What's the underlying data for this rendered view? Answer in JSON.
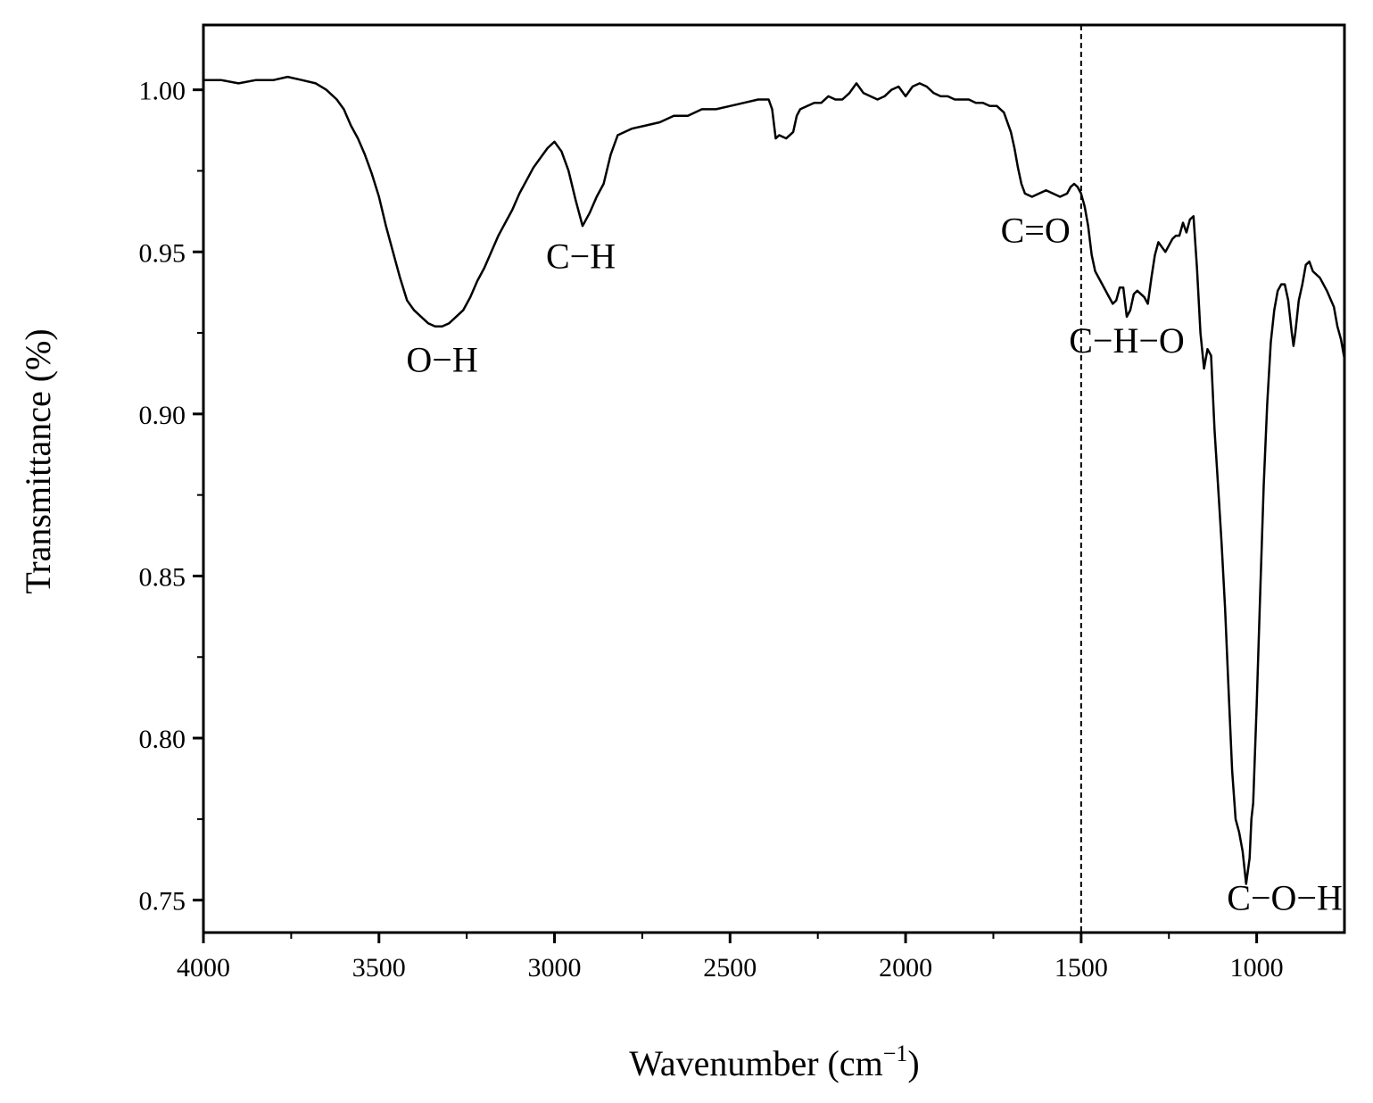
{
  "chart_data": {
    "type": "line",
    "xlabel": "Wavenumber (cm",
    "xlabel_sup": "−1",
    "xlabel_end": ")",
    "ylabel": "Transmittance (%)",
    "xlim": [
      4000,
      750
    ],
    "x_reversed": true,
    "ylim": [
      0.74,
      1.02
    ],
    "xticks": [
      4000,
      3500,
      3000,
      2500,
      2000,
      1500,
      1000
    ],
    "xtick_labels": [
      "4000",
      "3500",
      "3000",
      "2500",
      "2000",
      "1500",
      "1000"
    ],
    "yticks": [
      0.75,
      0.8,
      0.85,
      0.9,
      0.95,
      1.0
    ],
    "ytick_labels": [
      "0.75",
      "0.80",
      "0.85",
      "0.90",
      "0.95",
      "1.00"
    ],
    "grid": false,
    "reference_line": {
      "x": 1500,
      "style": "dashed"
    },
    "series": [
      {
        "color": "#000000",
        "points": [
          [
            4000,
            1.003
          ],
          [
            3950,
            1.003
          ],
          [
            3900,
            1.002
          ],
          [
            3850,
            1.003
          ],
          [
            3800,
            1.003
          ],
          [
            3760,
            1.004
          ],
          [
            3720,
            1.003
          ],
          [
            3680,
            1.002
          ],
          [
            3650,
            1.0
          ],
          [
            3620,
            0.997
          ],
          [
            3600,
            0.994
          ],
          [
            3580,
            0.989
          ],
          [
            3560,
            0.985
          ],
          [
            3540,
            0.98
          ],
          [
            3520,
            0.974
          ],
          [
            3500,
            0.967
          ],
          [
            3480,
            0.958
          ],
          [
            3460,
            0.95
          ],
          [
            3440,
            0.942
          ],
          [
            3420,
            0.935
          ],
          [
            3400,
            0.932
          ],
          [
            3380,
            0.93
          ],
          [
            3360,
            0.928
          ],
          [
            3340,
            0.927
          ],
          [
            3320,
            0.927
          ],
          [
            3300,
            0.928
          ],
          [
            3280,
            0.93
          ],
          [
            3260,
            0.932
          ],
          [
            3240,
            0.936
          ],
          [
            3220,
            0.941
          ],
          [
            3200,
            0.945
          ],
          [
            3180,
            0.95
          ],
          [
            3160,
            0.955
          ],
          [
            3140,
            0.959
          ],
          [
            3120,
            0.963
          ],
          [
            3100,
            0.968
          ],
          [
            3080,
            0.972
          ],
          [
            3060,
            0.976
          ],
          [
            3040,
            0.979
          ],
          [
            3020,
            0.982
          ],
          [
            3000,
            0.984
          ],
          [
            2980,
            0.981
          ],
          [
            2960,
            0.975
          ],
          [
            2940,
            0.966
          ],
          [
            2920,
            0.958
          ],
          [
            2900,
            0.962
          ],
          [
            2880,
            0.967
          ],
          [
            2860,
            0.971
          ],
          [
            2840,
            0.98
          ],
          [
            2820,
            0.986
          ],
          [
            2800,
            0.987
          ],
          [
            2780,
            0.988
          ],
          [
            2740,
            0.989
          ],
          [
            2700,
            0.99
          ],
          [
            2660,
            0.992
          ],
          [
            2620,
            0.992
          ],
          [
            2580,
            0.994
          ],
          [
            2540,
            0.994
          ],
          [
            2500,
            0.995
          ],
          [
            2460,
            0.996
          ],
          [
            2420,
            0.997
          ],
          [
            2390,
            0.997
          ],
          [
            2380,
            0.994
          ],
          [
            2370,
            0.985
          ],
          [
            2360,
            0.986
          ],
          [
            2340,
            0.985
          ],
          [
            2320,
            0.987
          ],
          [
            2310,
            0.992
          ],
          [
            2300,
            0.994
          ],
          [
            2280,
            0.995
          ],
          [
            2260,
            0.996
          ],
          [
            2240,
            0.996
          ],
          [
            2220,
            0.998
          ],
          [
            2200,
            0.997
          ],
          [
            2180,
            0.997
          ],
          [
            2160,
            0.999
          ],
          [
            2140,
            1.002
          ],
          [
            2120,
            0.999
          ],
          [
            2100,
            0.998
          ],
          [
            2080,
            0.997
          ],
          [
            2060,
            0.998
          ],
          [
            2040,
            1.0
          ],
          [
            2020,
            1.001
          ],
          [
            2000,
            0.998
          ],
          [
            1980,
            1.001
          ],
          [
            1960,
            1.002
          ],
          [
            1940,
            1.001
          ],
          [
            1920,
            0.999
          ],
          [
            1900,
            0.998
          ],
          [
            1880,
            0.998
          ],
          [
            1860,
            0.997
          ],
          [
            1840,
            0.997
          ],
          [
            1820,
            0.997
          ],
          [
            1800,
            0.996
          ],
          [
            1780,
            0.996
          ],
          [
            1760,
            0.995
          ],
          [
            1740,
            0.995
          ],
          [
            1720,
            0.993
          ],
          [
            1700,
            0.987
          ],
          [
            1690,
            0.982
          ],
          [
            1680,
            0.976
          ],
          [
            1670,
            0.971
          ],
          [
            1660,
            0.968
          ],
          [
            1640,
            0.967
          ],
          [
            1620,
            0.968
          ],
          [
            1600,
            0.969
          ],
          [
            1580,
            0.968
          ],
          [
            1560,
            0.967
          ],
          [
            1540,
            0.968
          ],
          [
            1530,
            0.97
          ],
          [
            1520,
            0.971
          ],
          [
            1510,
            0.97
          ],
          [
            1500,
            0.968
          ],
          [
            1490,
            0.964
          ],
          [
            1480,
            0.958
          ],
          [
            1470,
            0.949
          ],
          [
            1460,
            0.944
          ],
          [
            1440,
            0.94
          ],
          [
            1420,
            0.936
          ],
          [
            1410,
            0.934
          ],
          [
            1400,
            0.935
          ],
          [
            1390,
            0.939
          ],
          [
            1380,
            0.939
          ],
          [
            1370,
            0.93
          ],
          [
            1360,
            0.932
          ],
          [
            1350,
            0.937
          ],
          [
            1340,
            0.938
          ],
          [
            1320,
            0.936
          ],
          [
            1310,
            0.934
          ],
          [
            1300,
            0.942
          ],
          [
            1290,
            0.949
          ],
          [
            1280,
            0.953
          ],
          [
            1260,
            0.95
          ],
          [
            1240,
            0.954
          ],
          [
            1230,
            0.955
          ],
          [
            1220,
            0.955
          ],
          [
            1210,
            0.959
          ],
          [
            1200,
            0.956
          ],
          [
            1190,
            0.96
          ],
          [
            1180,
            0.961
          ],
          [
            1170,
            0.945
          ],
          [
            1160,
            0.925
          ],
          [
            1150,
            0.914
          ],
          [
            1140,
            0.92
          ],
          [
            1130,
            0.918
          ],
          [
            1120,
            0.895
          ],
          [
            1110,
            0.878
          ],
          [
            1100,
            0.86
          ],
          [
            1090,
            0.84
          ],
          [
            1080,
            0.815
          ],
          [
            1070,
            0.79
          ],
          [
            1060,
            0.775
          ],
          [
            1050,
            0.771
          ],
          [
            1040,
            0.765
          ],
          [
            1030,
            0.755
          ],
          [
            1020,
            0.763
          ],
          [
            1015,
            0.775
          ],
          [
            1010,
            0.78
          ],
          [
            1000,
            0.81
          ],
          [
            990,
            0.845
          ],
          [
            980,
            0.878
          ],
          [
            970,
            0.903
          ],
          [
            960,
            0.922
          ],
          [
            950,
            0.932
          ],
          [
            940,
            0.938
          ],
          [
            930,
            0.94
          ],
          [
            920,
            0.94
          ],
          [
            910,
            0.935
          ],
          [
            900,
            0.925
          ],
          [
            895,
            0.921
          ],
          [
            890,
            0.925
          ],
          [
            880,
            0.935
          ],
          [
            870,
            0.94
          ],
          [
            860,
            0.946
          ],
          [
            850,
            0.947
          ],
          [
            840,
            0.944
          ],
          [
            820,
            0.942
          ],
          [
            800,
            0.938
          ],
          [
            780,
            0.933
          ],
          [
            770,
            0.927
          ],
          [
            760,
            0.923
          ],
          [
            750,
            0.917
          ]
        ]
      }
    ],
    "annotations": [
      {
        "text": "O−H",
        "x": 3320,
        "y": 0.913
      },
      {
        "text": "C−H",
        "x": 2925,
        "y": 0.945
      },
      {
        "text": "C=O",
        "x": 1630,
        "y": 0.953
      },
      {
        "text": "C−H−O",
        "x": 1370,
        "y": 0.919
      },
      {
        "text": "C−O−H",
        "x": 920,
        "y": 0.747
      }
    ]
  }
}
